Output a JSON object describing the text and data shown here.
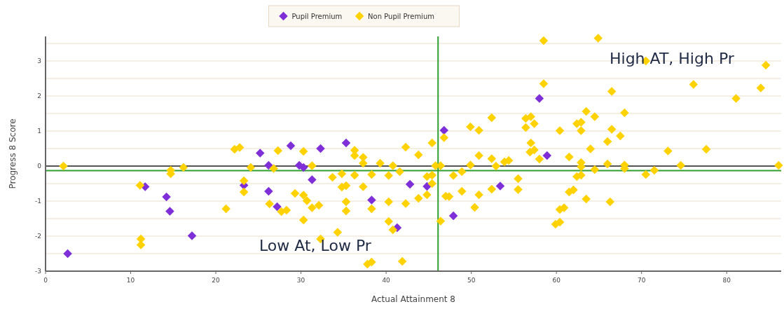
{
  "chart_data": {
    "type": "scatter",
    "xlabel": "Actual Attainment 8",
    "ylabel": "Progress 8 Score",
    "xlim": [
      0,
      86.4
    ],
    "ylim": [
      -3,
      3.7
    ],
    "xticks": [
      0,
      10,
      20,
      30,
      40,
      50,
      60,
      70,
      80
    ],
    "yticks": [
      -3,
      {
        "value": -2.5,
        "label": null
      },
      -2,
      {
        "value": -1.5,
        "label": null
      },
      -1,
      {
        "value": -0.5,
        "label": null
      },
      0,
      {
        "value": 0.5,
        "label": null
      },
      1,
      {
        "value": 1.5,
        "label": null
      },
      2,
      {
        "value": 2.5,
        "label": null
      },
      3,
      {
        "value": 3.5,
        "label": null
      }
    ],
    "grid": "y",
    "legend": "top",
    "marker": "diamond",
    "series": [
      {
        "name": "Pupil Premium",
        "color": "#7f2fd8",
        "x": [
          2.6,
          11.7,
          14.2,
          14.6,
          17.2,
          23.3,
          25.2,
          26.2,
          26.2,
          27.2,
          28.8,
          29.8,
          30.3,
          31.3,
          32.3,
          35.3,
          38.3,
          41.3,
          42.8,
          44.8,
          46.8,
          47.9,
          53.4,
          58.0,
          58.9
        ],
        "values": [
          -2.5,
          -0.59,
          -0.88,
          -1.29,
          -1.99,
          -0.55,
          0.37,
          0.02,
          -0.72,
          -1.16,
          0.58,
          0.02,
          -0.04,
          -0.39,
          0.5,
          0.66,
          -0.97,
          -1.76,
          -0.52,
          -0.58,
          1.02,
          -1.42,
          -0.57,
          1.93,
          0.3
        ]
      },
      {
        "name": "Non Pupil Premium",
        "color": "#ffd200",
        "x": [
          2.1,
          11.1,
          11.2,
          11.2,
          14.7,
          14.7,
          16.2,
          21.2,
          22.2,
          22.8,
          23.3,
          23.3,
          24.1,
          26.8,
          27.3,
          26.3,
          27.7,
          28.3,
          29.3,
          30.3,
          30.3,
          30.7,
          31.3,
          31.3,
          32.1,
          30.3,
          32.3,
          33.7,
          34.3,
          34.8,
          34.8,
          35.3,
          35.3,
          35.3,
          36.3,
          36.3,
          36.3,
          37.3,
          37.3,
          37.3,
          38.3,
          38.3,
          37.8,
          38.3,
          39.3,
          40.3,
          40.3,
          40.3,
          40.8,
          40.8,
          41.6,
          41.9,
          42.3,
          42.3,
          43.8,
          43.8,
          44.8,
          44.8,
          45.4,
          45.4,
          45.4,
          45.8,
          46.4,
          46.4,
          47.0,
          46.8,
          47.4,
          47.9,
          48.9,
          48.9,
          49.9,
          49.9,
          50.4,
          50.9,
          50.9,
          50.9,
          52.4,
          52.4,
          52.4,
          52.9,
          53.9,
          54.4,
          55.5,
          55.5,
          56.4,
          56.4,
          57.0,
          57.4,
          57.0,
          56.9,
          57.4,
          58.0,
          58.5,
          58.5,
          59.9,
          60.4,
          60.4,
          60.9,
          60.4,
          61.5,
          61.5,
          62.0,
          62.4,
          62.9,
          62.9,
          62.4,
          62.9,
          62.9,
          62.9,
          63.5,
          63.5,
          64.0,
          64.5,
          64.5,
          64.9,
          66.0,
          66.0,
          66.3,
          66.5,
          66.5,
          67.5,
          68.0,
          68.0,
          68.0,
          70.5,
          70.5,
          71.5,
          73.1,
          74.6,
          76.1,
          77.6,
          81.1,
          84.0,
          84.6,
          86.1
        ],
        "values": [
          0.0,
          -0.55,
          -2.08,
          -2.25,
          -0.12,
          -0.22,
          -0.04,
          -1.22,
          0.48,
          0.53,
          -0.42,
          -0.74,
          -0.04,
          -0.07,
          0.44,
          -1.08,
          -1.3,
          -1.26,
          -0.78,
          0.42,
          -0.83,
          -0.99,
          0.01,
          -1.19,
          -1.12,
          -1.54,
          -2.08,
          -0.32,
          -1.89,
          -0.22,
          -0.6,
          -0.56,
          -1.02,
          -1.28,
          0.45,
          0.3,
          -0.26,
          0.25,
          0.08,
          -0.59,
          -0.24,
          -1.22,
          -2.8,
          -2.74,
          0.08,
          -0.27,
          -1.02,
          -1.58,
          -1.82,
          0.01,
          -0.16,
          -2.72,
          -1.07,
          0.54,
          -0.92,
          0.32,
          -0.82,
          -0.3,
          -0.26,
          -0.5,
          0.66,
          0.01,
          0.01,
          -1.57,
          -0.86,
          0.81,
          -0.87,
          -0.27,
          -0.16,
          -0.72,
          0.03,
          1.12,
          -1.18,
          1.02,
          0.3,
          -0.82,
          1.38,
          0.21,
          -0.66,
          0.0,
          0.12,
          0.16,
          -0.36,
          -0.67,
          1.36,
          1.1,
          1.41,
          1.21,
          0.66,
          0.4,
          0.46,
          0.2,
          3.58,
          2.35,
          -1.66,
          -1.6,
          -1.24,
          -1.19,
          1.01,
          0.26,
          -0.74,
          -0.68,
          1.21,
          1.25,
          1.01,
          -0.3,
          -0.26,
          0.1,
          -0.02,
          1.56,
          -0.94,
          0.49,
          1.41,
          -0.1,
          3.65,
          0.7,
          0.06,
          -1.02,
          2.13,
          1.05,
          0.86,
          1.52,
          0.03,
          -0.07,
          3.0,
          -0.24,
          -0.12,
          0.43,
          0.02,
          2.33,
          0.48,
          1.93,
          2.23,
          2.88,
          0.02
        ]
      }
    ],
    "ref_lines": [
      {
        "axis": "y",
        "value": 0,
        "color": "#555555"
      },
      {
        "axis": "y",
        "value": -0.13,
        "color": "#2e9e2e"
      },
      {
        "axis": "x",
        "value": 46.1,
        "color": "#2e9e2e"
      }
    ],
    "annotations": [
      "High AT, High Pr",
      "Low At, Low Pr"
    ]
  }
}
